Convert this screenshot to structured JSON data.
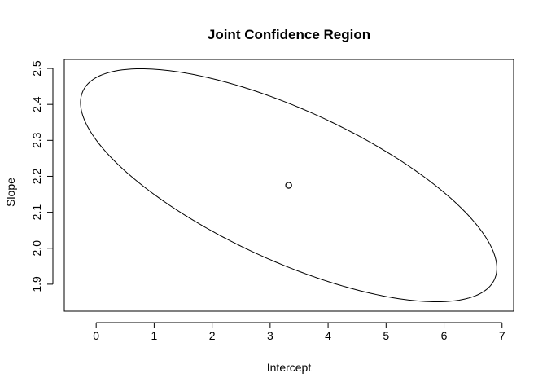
{
  "chart_data": {
    "type": "scatter",
    "title": "Joint Confidence Region",
    "xlabel": "Intercept",
    "ylabel": "Slope",
    "xlim": [
      -0.55,
      7.2
    ],
    "ylim": [
      1.825,
      2.525
    ],
    "x_ticks": [
      0,
      1,
      2,
      3,
      4,
      5,
      6,
      7
    ],
    "x_tick_labels": [
      "0",
      "1",
      "2",
      "3",
      "4",
      "5",
      "6",
      "7"
    ],
    "y_ticks": [
      1.9,
      2.0,
      2.1,
      2.2,
      2.3,
      2.4,
      2.5
    ],
    "y_tick_labels": [
      "1.9",
      "2.0",
      "2.1",
      "2.2",
      "2.3",
      "2.4",
      "2.5"
    ],
    "grid": false,
    "series": [
      {
        "type": "point",
        "x": [
          3.32
        ],
        "y": [
          2.175
        ]
      },
      {
        "type": "ellipse-outline",
        "center": [
          3.32,
          2.175
        ],
        "extremes": {
          "x_min": [
            -0.27,
            2.43
          ],
          "x_max": [
            6.91,
            1.92
          ],
          "y_min": [
            6.17,
            1.851
          ],
          "y_max": [
            0.47,
            2.499
          ]
        }
      }
    ]
  }
}
